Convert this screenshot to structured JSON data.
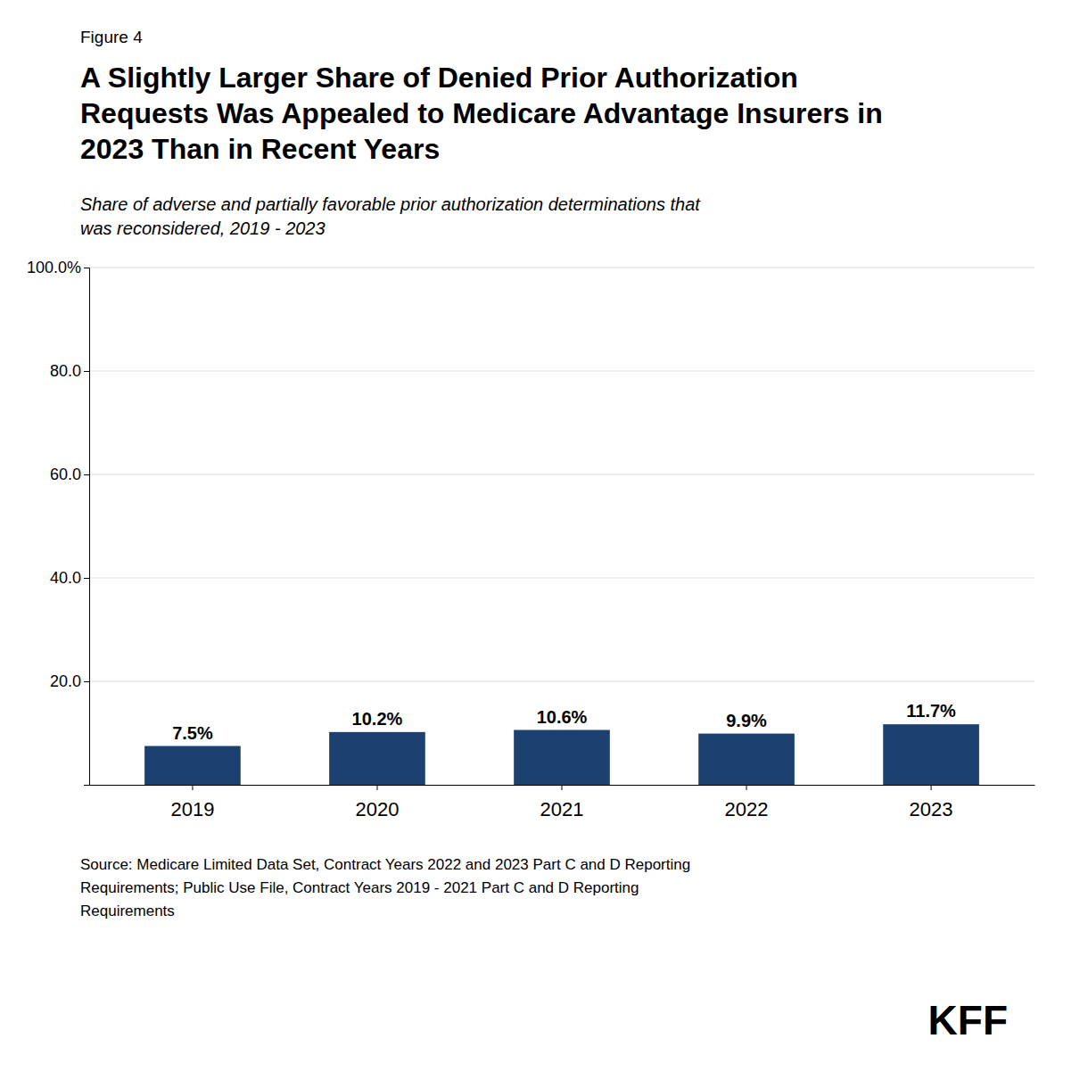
{
  "chart_data": {
    "type": "bar",
    "figure_label": "Figure 4",
    "title": "A Slightly Larger Share of Denied Prior Authorization\nRequests Was Appealed to Medicare Advantage Insurers in\n2023 Than in Recent Years",
    "subtitle": "Share of adverse and partially favorable prior authorization determinations that\nwas reconsidered, 2019 - 2023",
    "categories": [
      "2019",
      "2020",
      "2021",
      "2022",
      "2023"
    ],
    "values": [
      7.5,
      10.2,
      10.6,
      9.9,
      11.7
    ],
    "value_labels": [
      "7.5%",
      "10.2%",
      "10.6%",
      "9.9%",
      "11.7%"
    ],
    "data_labels": true,
    "color": "#1c4070",
    "ylim": [
      0,
      100
    ],
    "yticks": [
      {
        "value": 20.0,
        "label": "20.0"
      },
      {
        "value": 40.0,
        "label": "40.0"
      },
      {
        "value": 60.0,
        "label": "60.0"
      },
      {
        "value": 80.0,
        "label": "80.0"
      },
      {
        "value": 100.0,
        "label": "100.0%"
      }
    ],
    "grid": true,
    "source": "Source: Medicare Limited Data Set, Contract Years 2022 and 2023 Part C and D Reporting\nRequirements; Public Use File, Contract Years 2019 - 2021 Part C and D Reporting\nRequirements",
    "annotations": [
      "KFF"
    ]
  }
}
